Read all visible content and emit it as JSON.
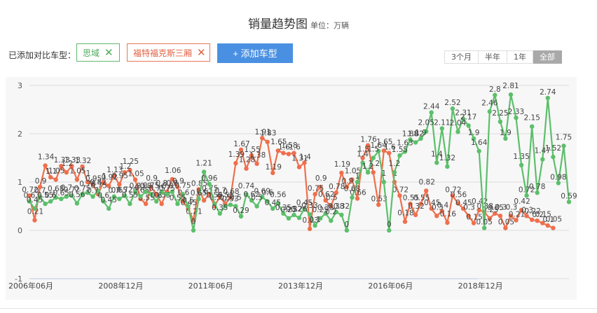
{
  "header": {
    "title": "销量趋势图",
    "unit": "单位：万辆"
  },
  "compare": {
    "label": "已添加对比车型：",
    "tags": [
      {
        "name": "思域",
        "close": "✕",
        "color": "#4fa95c"
      },
      {
        "name": "福特福克斯三厢",
        "close": "✕",
        "color": "#e05f40"
      }
    ],
    "add_button": "+ 添加车型"
  },
  "ranges": [
    {
      "label": "3个月",
      "active": false
    },
    {
      "label": "半年",
      "active": false
    },
    {
      "label": "1年",
      "active": false
    },
    {
      "label": "全部",
      "active": true
    }
  ],
  "chart_data": {
    "type": "line",
    "ylim": [
      -1,
      3
    ],
    "yticks": [
      "3",
      "2",
      "1",
      "0",
      "-1"
    ],
    "xticks": [
      "2006年06月",
      "2008年12月",
      "2011年06月",
      "2013年12月",
      "2016年06月",
      "2018年12月"
    ],
    "grid": true,
    "legend": "top-left",
    "series": [
      {
        "name": "福特福克斯三厢",
        "color": "#ef6f4c",
        "values": [
          [
            "2006-06",
            0.72
          ],
          [
            "2006-08",
            0.21
          ],
          [
            "2006-10",
            0.9
          ],
          [
            "2006-12",
            1.34
          ],
          [
            "2007-02",
            1.1
          ],
          [
            "2007-04",
            1.05
          ],
          [
            "2007-06",
            1.33
          ],
          [
            "2007-08",
            1.2
          ],
          [
            "2007-10",
            1.33
          ],
          [
            "2007-12",
            1.05
          ],
          [
            "2008-02",
            1.32
          ],
          [
            "2008-04",
            1.0
          ],
          [
            "2008-06",
            0.95
          ],
          [
            "2008-08",
            0.75
          ],
          [
            "2008-10",
            1.0
          ],
          [
            "2008-12",
            0.92
          ],
          [
            "2009-02",
            1.13
          ],
          [
            "2009-04",
            0.95
          ],
          [
            "2009-06",
            1.2
          ],
          [
            "2009-08",
            1.25
          ],
          [
            "2009-10",
            1.05
          ],
          [
            "2009-12",
            0.65
          ],
          [
            "2010-02",
            0.55
          ],
          [
            "2010-04",
            0.9
          ],
          [
            "2010-06",
            0.75
          ],
          [
            "2010-08",
            0.55
          ],
          [
            "2010-10",
            0.8
          ],
          [
            "2010-12",
            1.06
          ],
          [
            "2011-02",
            0.9
          ],
          [
            "2011-04",
            0.6
          ],
          [
            "2011-06",
            0.45
          ],
          [
            "2011-08",
            0.21
          ],
          [
            "2011-10",
            0.85
          ],
          [
            "2011-12",
            0.62
          ],
          [
            "2012-02",
            0.75
          ],
          [
            "2012-04",
            0.5
          ],
          [
            "2012-06",
            0.7
          ],
          [
            "2012-08",
            0.55
          ],
          [
            "2012-10",
            0.68
          ],
          [
            "2012-12",
            1.39
          ],
          [
            "2013-02",
            1.67
          ],
          [
            "2013-04",
            1.28
          ],
          [
            "2013-06",
            1.55
          ],
          [
            "2013-08",
            1.38
          ],
          [
            "2013-10",
            1.91
          ],
          [
            "2013-12",
            1.83
          ],
          [
            "2014-02",
            1.19
          ],
          [
            "2014-04",
            1.65
          ],
          [
            "2014-06",
            1.6
          ],
          [
            "2014-08",
            1.58
          ],
          [
            "2014-10",
            1.6
          ],
          [
            "2014-12",
            1.31
          ],
          [
            "2015-02",
            1.4
          ],
          [
            "2015-04",
            0.03
          ],
          [
            "2015-06",
            0.75
          ],
          [
            "2015-08",
            0.9
          ],
          [
            "2015-10",
            0.62
          ],
          [
            "2015-12",
            0.5
          ],
          [
            "2016-02",
            0.78
          ],
          [
            "2016-04",
            1.19
          ],
          [
            "2016-06",
            0.9
          ],
          [
            "2016-08",
            1.05
          ],
          [
            "2016-10",
            0.66
          ],
          [
            "2016-12",
            1.5
          ],
          [
            "2017-02",
            1.76
          ],
          [
            "2017-04",
            1.2
          ],
          [
            "2017-06",
            0.53
          ],
          [
            "2017-08",
            1.65
          ],
          [
            "2017-10",
            1.6
          ],
          [
            "2017-12",
            1.0
          ],
          [
            "2018-02",
            0.72
          ],
          [
            "2018-04",
            0.18
          ],
          [
            "2018-06",
            0.55
          ],
          [
            "2018-08",
            0.32
          ],
          [
            "2018-10",
            0.55
          ],
          [
            "2018-12",
            0.82
          ],
          [
            "2019-02",
            0.45
          ],
          [
            "2019-04",
            0.3
          ],
          [
            "2019-06",
            0.4
          ],
          [
            "2019-08",
            0.16
          ],
          [
            "2019-10",
            0.72
          ],
          [
            "2019-12",
            0.56
          ],
          [
            "2020-02",
            0.45
          ],
          [
            "2020-04",
            0.3
          ],
          [
            "2020-06",
            0.15
          ],
          [
            "2020-08",
            0.42
          ],
          [
            "2020-10",
            0.38
          ],
          [
            "2020-12",
            0.25
          ],
          [
            "2021-02",
            0.35
          ],
          [
            "2021-04",
            0.3
          ],
          [
            "2021-06",
            0.05
          ],
          [
            "2021-08",
            0.3
          ],
          [
            "2021-10",
            0.21
          ],
          [
            "2021-12",
            0.42
          ],
          [
            "2022-02",
            0.3
          ],
          [
            "2022-04",
            0.22
          ],
          [
            "2022-06",
            0.2
          ],
          [
            "2022-08",
            0.15
          ],
          [
            "2022-10",
            0.1
          ],
          [
            "2022-12",
            0.05
          ]
        ]
      },
      {
        "name": "思域",
        "color": "#5cbf6b",
        "values": [
          [
            "2006-06",
            0.6
          ],
          [
            "2006-08",
            0.45
          ],
          [
            "2006-10",
            0.7
          ],
          [
            "2006-12",
            0.55
          ],
          [
            "2007-02",
            0.6
          ],
          [
            "2007-04",
            0.68
          ],
          [
            "2007-06",
            0.65
          ],
          [
            "2007-08",
            0.7
          ],
          [
            "2007-10",
            0.72
          ],
          [
            "2007-12",
            0.56
          ],
          [
            "2008-02",
            0.75
          ],
          [
            "2008-04",
            0.78
          ],
          [
            "2008-06",
            0.7
          ],
          [
            "2008-08",
            0.82
          ],
          [
            "2008-10",
            0.6
          ],
          [
            "2008-12",
            0.45
          ],
          [
            "2009-02",
            0.7
          ],
          [
            "2009-04",
            0.65
          ],
          [
            "2009-06",
            0.72
          ],
          [
            "2009-08",
            0.55
          ],
          [
            "2009-10",
            0.8
          ],
          [
            "2009-12",
            0.7
          ],
          [
            "2010-02",
            0.8
          ],
          [
            "2010-04",
            0.75
          ],
          [
            "2010-06",
            0.6
          ],
          [
            "2010-08",
            0.8
          ],
          [
            "2010-10",
            0.75
          ],
          [
            "2010-12",
            0.8
          ],
          [
            "2011-02",
            0.55
          ],
          [
            "2011-04",
            0.75
          ],
          [
            "2011-06",
            0.5
          ],
          [
            "2011-08",
            0.0
          ],
          [
            "2011-10",
            0.65
          ],
          [
            "2011-12",
            1.21
          ],
          [
            "2012-02",
            0.96
          ],
          [
            "2012-04",
            0.55
          ],
          [
            "2012-06",
            0.35
          ],
          [
            "2012-08",
            0.5
          ],
          [
            "2012-10",
            0.53
          ],
          [
            "2012-12",
            0.5
          ],
          [
            "2013-02",
            0.29
          ],
          [
            "2013-04",
            0.74
          ],
          [
            "2013-06",
            0.62
          ],
          [
            "2013-08",
            0.5
          ],
          [
            "2013-10",
            0.69
          ],
          [
            "2013-12",
            0.6
          ],
          [
            "2014-02",
            0.45
          ],
          [
            "2014-04",
            0.56
          ],
          [
            "2014-06",
            0.35
          ],
          [
            "2014-08",
            0.25
          ],
          [
            "2014-10",
            0.32
          ],
          [
            "2014-12",
            0.26
          ],
          [
            "2015-02",
            0.45
          ],
          [
            "2015-04",
            0.33
          ],
          [
            "2015-06",
            0.1
          ],
          [
            "2015-08",
            0.25
          ],
          [
            "2015-10",
            0.35
          ],
          [
            "2015-12",
            0.2
          ],
          [
            "2016-02",
            0.38
          ],
          [
            "2016-04",
            0.32
          ],
          [
            "2016-06",
            0.0
          ],
          [
            "2016-08",
            0.68
          ],
          [
            "2016-10",
            1.0
          ],
          [
            "2016-12",
            1.4
          ],
          [
            "2017-02",
            1.2
          ],
          [
            "2017-04",
            1.5
          ],
          [
            "2017-06",
            1.64
          ],
          [
            "2017-08",
            1.0
          ],
          [
            "2017-10",
            0.0
          ],
          [
            "2017-12",
            1.2
          ],
          [
            "2018-02",
            1.55
          ],
          [
            "2018-04",
            1.63
          ],
          [
            "2018-06",
            1.88
          ],
          [
            "2018-08",
            1.82
          ],
          [
            "2018-10",
            1.9
          ],
          [
            "2018-12",
            2.05
          ],
          [
            "2019-02",
            2.44
          ],
          [
            "2019-04",
            1.4
          ],
          [
            "2019-06",
            2.11
          ],
          [
            "2019-08",
            1.32
          ],
          [
            "2019-10",
            2.52
          ],
          [
            "2019-12",
            2.04
          ],
          [
            "2020-02",
            2.31
          ],
          [
            "2020-04",
            2.17
          ],
          [
            "2020-06",
            1.9
          ],
          [
            "2020-08",
            1.64
          ],
          [
            "2020-10",
            0.05
          ],
          [
            "2020-12",
            2.46
          ],
          [
            "2021-02",
            2.8
          ],
          [
            "2021-04",
            2.25
          ],
          [
            "2021-06",
            1.9
          ],
          [
            "2021-08",
            2.81
          ],
          [
            "2021-10",
            2.33
          ],
          [
            "2021-12",
            1.35
          ],
          [
            "2022-02",
            0.72
          ],
          [
            "2022-04",
            2.15
          ],
          [
            "2022-06",
            0.78
          ],
          [
            "2022-08",
            1.47
          ],
          [
            "2022-10",
            2.74
          ],
          [
            "2022-12",
            1.52
          ],
          [
            "2023-02",
            0.98
          ],
          [
            "2023-04",
            1.75
          ],
          [
            "2023-06",
            0.59
          ]
        ]
      }
    ]
  }
}
